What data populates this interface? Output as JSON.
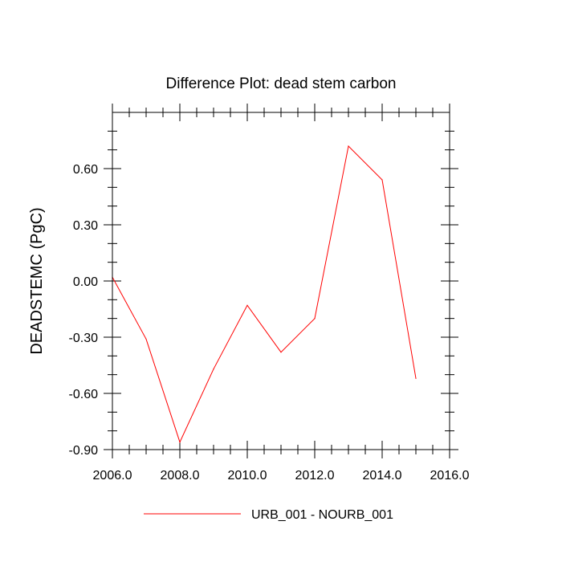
{
  "chart_data": {
    "type": "line",
    "title": "Difference Plot: dead stem carbon",
    "xlabel": "",
    "ylabel": "DEADSTEMC  (PgC)",
    "xlim": [
      2006,
      2016
    ],
    "ylim": [
      -0.9,
      0.9
    ],
    "x_ticks": [
      2006,
      2008,
      2010,
      2012,
      2014,
      2016
    ],
    "x_tick_labels": [
      "2006.0",
      "2008.0",
      "2010.0",
      "2012.0",
      "2014.0",
      "2016.0"
    ],
    "y_ticks": [
      -0.9,
      -0.6,
      -0.3,
      0.0,
      0.3,
      0.6
    ],
    "y_tick_labels": [
      "-0.90",
      "-0.60",
      "-0.30",
      "0.00",
      "0.30",
      "0.60"
    ],
    "grid": false,
    "legend_position": "bottom-center",
    "series": [
      {
        "name": "URB_001 - NOURB_001",
        "color": "#ff0000",
        "x": [
          2006,
          2007,
          2008,
          2009,
          2010,
          2011,
          2012,
          2013,
          2014,
          2015
        ],
        "values": [
          0.02,
          -0.31,
          -0.86,
          -0.47,
          -0.13,
          -0.38,
          -0.2,
          0.72,
          0.54,
          -0.52
        ]
      }
    ]
  }
}
